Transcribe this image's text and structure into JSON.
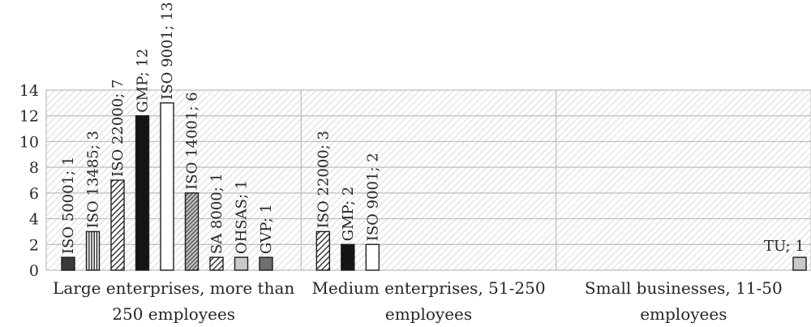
{
  "chart_data": {
    "type": "bar",
    "title": "",
    "xlabel": "",
    "ylabel": "",
    "ylim": [
      0,
      14
    ],
    "yticks": [
      0,
      2,
      4,
      6,
      8,
      10,
      12,
      14
    ],
    "grid": true,
    "legend": "none",
    "groups": [
      {
        "label_lines": [
          "Large enterprises, more than",
          "250 employees"
        ],
        "bars": [
          {
            "name": "ISO 50001",
            "value": 1,
            "label": "ISO 50001; 1",
            "fill": "solid-dark"
          },
          {
            "name": "ISO 13485",
            "value": 3,
            "label": "ISO 13485; 3",
            "fill": "vertical-lines"
          },
          {
            "name": "ISO 22000",
            "value": 7,
            "label": "ISO 22000; 7",
            "fill": "diagonal-hatch"
          },
          {
            "name": "GMP",
            "value": 12,
            "label": "GMP; 12",
            "fill": "solid-black"
          },
          {
            "name": "ISO 9001",
            "value": 13,
            "label": "ISO 9001; 13",
            "fill": "white"
          },
          {
            "name": "ISO 14001",
            "value": 6,
            "label": "ISO 14001; 6",
            "fill": "dense-hatch"
          },
          {
            "name": "SA 8000",
            "value": 1,
            "label": "SA 8000; 1",
            "fill": "diagonal-hatch"
          },
          {
            "name": "OHSAS",
            "value": 1,
            "label": "OHSAS; 1",
            "fill": "light-grey"
          },
          {
            "name": "GVP",
            "value": 1,
            "label": "GVP; 1",
            "fill": "mid-grey"
          }
        ]
      },
      {
        "label_lines": [
          "Medium enterprises, 51-250",
          "employees"
        ],
        "bars": [
          {
            "name": "ISO 22000",
            "value": 3,
            "label": "ISO 22000; 3",
            "fill": "diagonal-hatch"
          },
          {
            "name": "GMP",
            "value": 2,
            "label": "GMP; 2",
            "fill": "solid-black"
          },
          {
            "name": "ISO 9001",
            "value": 2,
            "label": "ISO 9001; 2",
            "fill": "white"
          }
        ]
      },
      {
        "label_lines": [
          "Small businesses, 11-50",
          "employees"
        ],
        "bars": [
          {
            "name": "TU",
            "value": 1,
            "label": "TU; 1",
            "fill": "light-grey"
          }
        ]
      }
    ],
    "colors": {
      "solid-dark": "#3a3a3a",
      "solid-black": "#141414",
      "white": "#ffffff",
      "light-grey": "#c9c9c9",
      "mid-grey": "#6e6e6e",
      "outline": "#1e1e1e",
      "plot_hatch": "#cfcfcf",
      "grid": "#bdbdbd"
    }
  }
}
